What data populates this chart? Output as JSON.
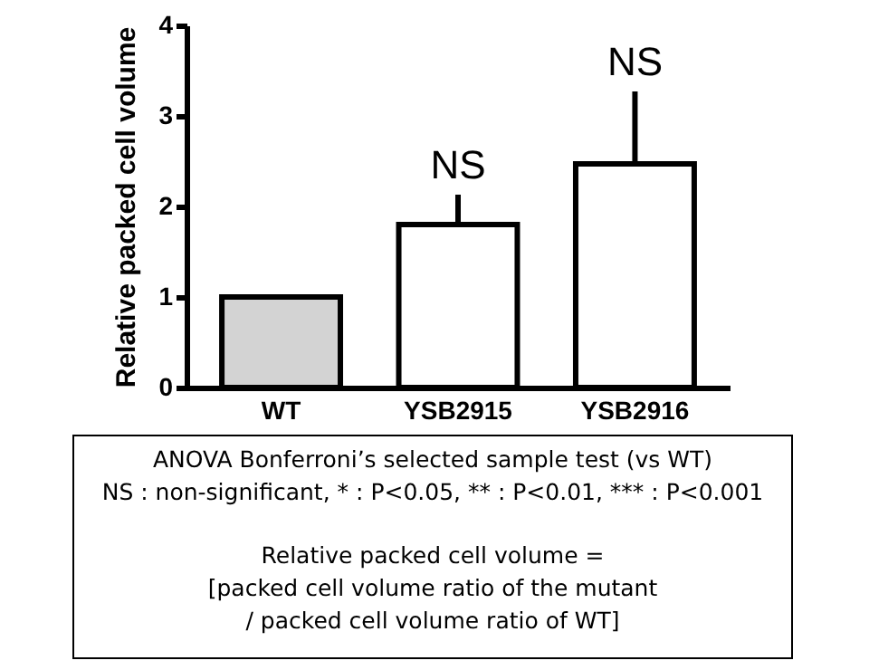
{
  "chart_data": {
    "type": "bar",
    "ylabel": "Relative packed cell volume",
    "categories": [
      "WT",
      "YSB2915",
      "YSB2916"
    ],
    "values": [
      1.0,
      1.8,
      2.47
    ],
    "colors": [
      "#d3d3d3",
      "#ffffff",
      "#ffffff"
    ],
    "errors": [
      0.02,
      0.33,
      0.8
    ],
    "ylim": [
      0,
      4
    ],
    "yticks": [
      0,
      1,
      2,
      3,
      4
    ],
    "grid": false,
    "annotations": [
      {
        "text": "NS",
        "x": "YSB2915",
        "y": 2.13
      },
      {
        "text": "NS",
        "x": "YSB2916",
        "y": 3.27
      },
      "ANOVA Bonferroni’s selected sample test (vs WT)",
      "NS : non-significant, * : P<0.05, ** : P<0.01, *** : P<0.001",
      "Relative packed cell volume =",
      "[packed cell volume ratio of the mutant",
      "/ packed cell volume ratio of WT]"
    ]
  }
}
